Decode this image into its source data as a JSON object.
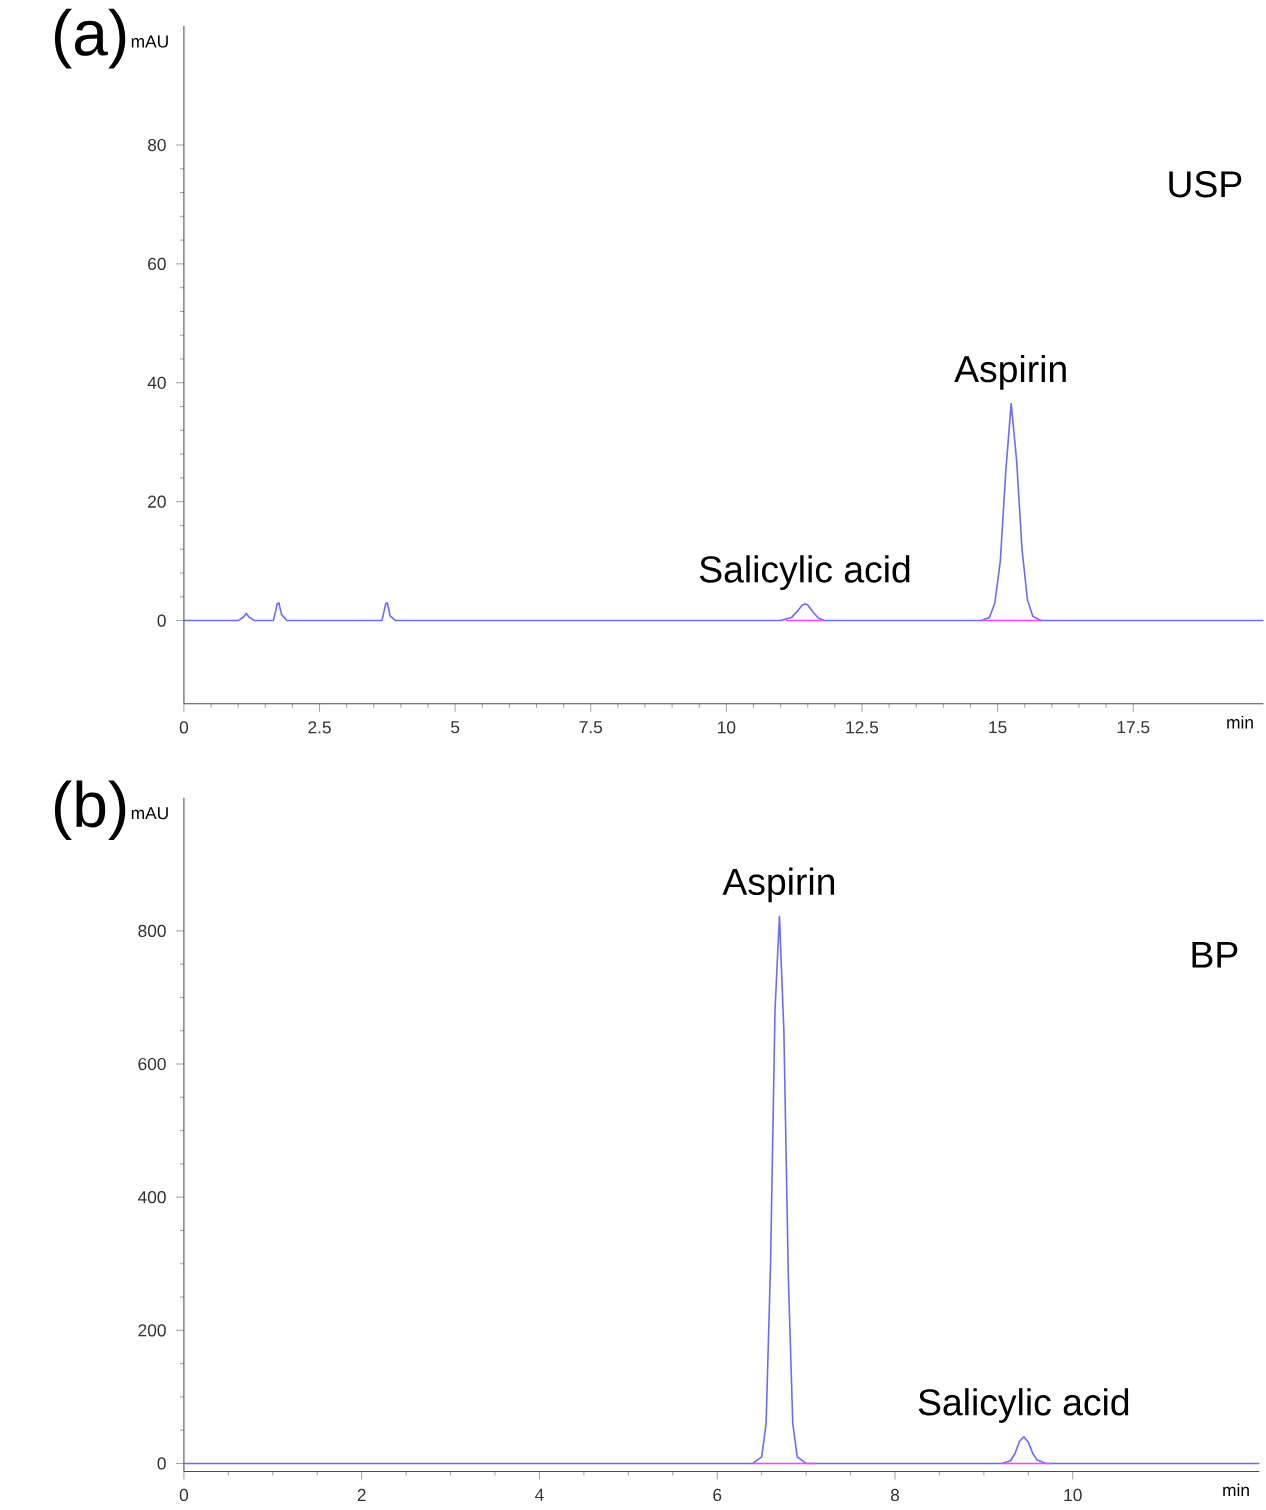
{
  "chart_data": [
    {
      "type": "line",
      "title": "(a)",
      "xlabel": "min",
      "ylabel": "mAU",
      "xlim": [
        0,
        19.9
      ],
      "ylim": [
        -14,
        100
      ],
      "xticks": [
        0,
        2.5,
        5,
        7.5,
        10,
        12.5,
        15,
        17.5
      ],
      "yticks": [
        0,
        20,
        40,
        60,
        80
      ],
      "grid": false,
      "marker": "none",
      "line_style": "solid",
      "annotations": [
        "USP",
        {
          "text": "Salicylic acid",
          "x": 11.45,
          "y": 2.8
        },
        {
          "text": "Aspirin",
          "x": 15.25,
          "y": 36.5
        }
      ],
      "series": [
        {
          "color": "#6a6aff",
          "x": [
            0,
            1.0,
            1.1,
            1.15,
            1.2,
            1.3,
            1.65,
            1.72,
            1.75,
            1.8,
            1.9,
            3.65,
            3.72,
            3.75,
            3.8,
            3.9,
            11.0,
            11.2,
            11.3,
            11.4,
            11.45,
            11.5,
            11.6,
            11.7,
            11.8,
            14.7,
            14.85,
            14.95,
            15.05,
            15.15,
            15.25,
            15.35,
            15.45,
            15.55,
            15.65,
            15.8,
            19.9
          ],
          "values": [
            0,
            0,
            0.6,
            1.2,
            0.6,
            0,
            0,
            2.8,
            3.0,
            1.0,
            0,
            0,
            2.8,
            3.0,
            0.8,
            0,
            0,
            0.5,
            1.5,
            2.6,
            2.8,
            2.6,
            1.4,
            0.4,
            0,
            0,
            0.5,
            3,
            10,
            25,
            36.5,
            27,
            12,
            3.5,
            0.7,
            0,
            0
          ]
        },
        {
          "color": "#ff44ff",
          "x": [
            11.1,
            11.8,
            11.9,
            14.7,
            15.8
          ],
          "values": [
            0,
            0,
            null,
            0,
            0
          ]
        }
      ]
    },
    {
      "type": "line",
      "title": "(b)",
      "xlabel": "min",
      "ylabel": "mAU",
      "xlim": [
        0,
        12.1
      ],
      "ylim": [
        -12,
        1000
      ],
      "xticks": [
        0,
        2,
        4,
        6,
        8,
        10
      ],
      "yticks": [
        0,
        200,
        400,
        600,
        800
      ],
      "grid": false,
      "marker": "none",
      "line_style": "solid",
      "annotations": [
        "BP",
        {
          "text": "Aspirin",
          "x": 6.7,
          "y": 822
        },
        {
          "text": "Salicylic acid",
          "x": 9.45,
          "y": 40
        }
      ],
      "series": [
        {
          "color": "#6a6aff",
          "x": [
            0,
            6.4,
            6.5,
            6.55,
            6.6,
            6.65,
            6.7,
            6.75,
            6.8,
            6.85,
            6.9,
            7.0,
            9.2,
            9.3,
            9.35,
            9.4,
            9.45,
            9.5,
            9.55,
            9.6,
            9.7,
            12.1
          ],
          "values": [
            0,
            0,
            10,
            60,
            300,
            680,
            822,
            650,
            280,
            60,
            10,
            0,
            0,
            4,
            15,
            33,
            40,
            32,
            15,
            5,
            0,
            0
          ]
        },
        {
          "color": "#ff44ff",
          "x": [
            6.4,
            7.1,
            7.2,
            9.2,
            9.75
          ],
          "values": [
            0,
            0,
            null,
            0,
            0
          ]
        }
      ]
    }
  ]
}
